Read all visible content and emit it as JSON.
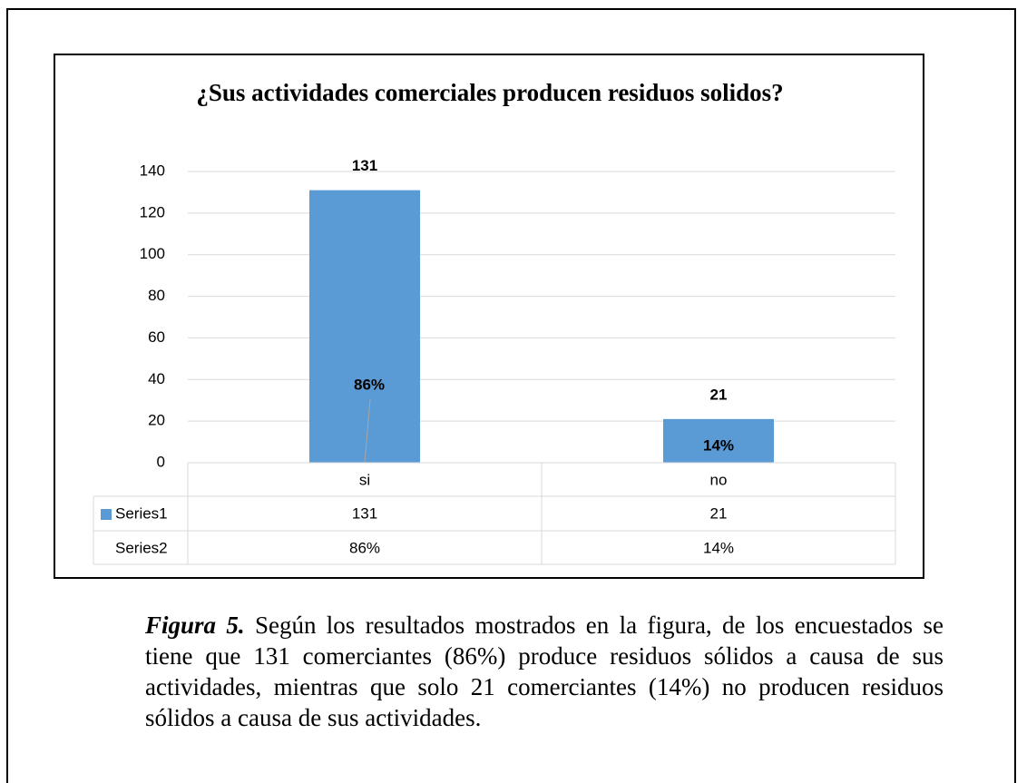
{
  "chart_data": {
    "type": "bar",
    "title": "¿Sus actividades comerciales producen residuos solidos?",
    "categories": [
      "si",
      "no"
    ],
    "series": [
      {
        "name": "Series1",
        "color": "#5b9bd5",
        "values": [
          131,
          21
        ]
      },
      {
        "name": "Series2",
        "color": "#ed7d31",
        "values": [
          0.86,
          0.14
        ],
        "value_labels": [
          "86%",
          "14%"
        ]
      }
    ],
    "ylim": [
      0,
      140
    ],
    "yticks": [
      0,
      20,
      40,
      60,
      80,
      100,
      120,
      140
    ],
    "grid": true,
    "data_table": true
  },
  "caption": {
    "label": "Figura 5.",
    "text": "Según los resultados mostrados en la figura, de los encuestados se tiene que 131 comerciantes (86%) produce residuos sólidos a causa de sus actividades, mientras que solo 21 comerciantes (14%) no producen residuos sólidos a causa de sus actividades."
  }
}
